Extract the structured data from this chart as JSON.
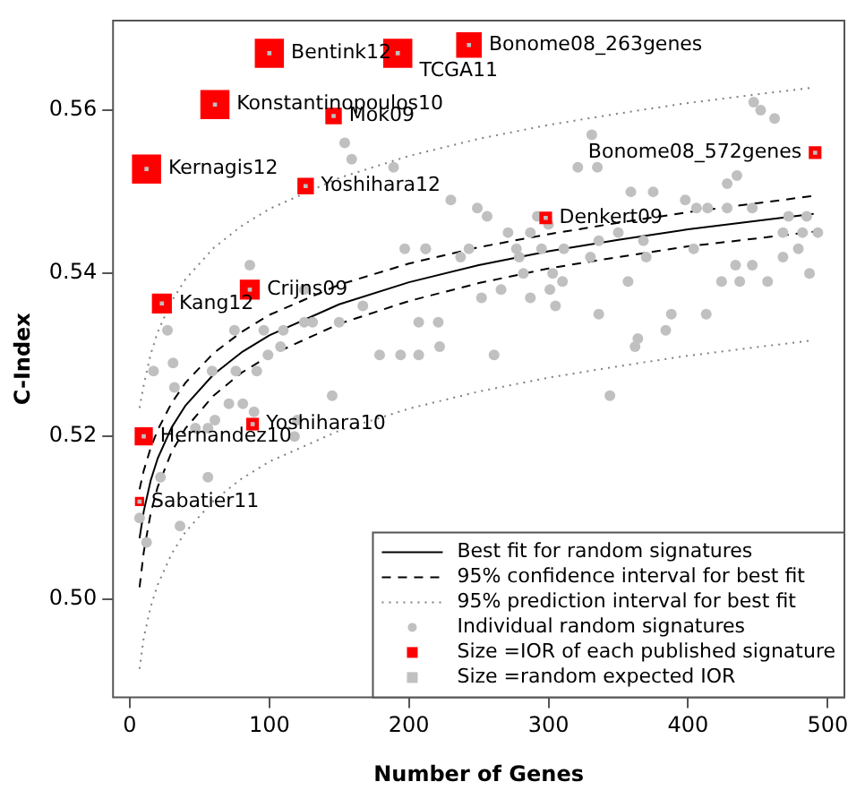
{
  "chart_data": {
    "type": "scatter",
    "xlabel": "Number of Genes",
    "ylabel": "C-Index",
    "xlim": [
      -12,
      512
    ],
    "ylim": [
      0.488,
      0.571
    ],
    "xticks": [
      0,
      100,
      200,
      300,
      400,
      500
    ],
    "yticks": [
      {
        "value": 0.5,
        "label": "0.50"
      },
      {
        "value": 0.52,
        "label": "0.52"
      },
      {
        "value": 0.54,
        "label": "0.54"
      },
      {
        "value": 0.56,
        "label": "0.56"
      }
    ],
    "grid": false,
    "legend": "bottom right",
    "series": [
      {
        "name": "Best fit for random signatures",
        "type": "line",
        "line_style": "solid",
        "marker": "none",
        "color": "#000000",
        "x": [
          7,
          10,
          15,
          20,
          30,
          40,
          60,
          80,
          100,
          150,
          200,
          250,
          300,
          350,
          400,
          490
        ],
        "values": [
          0.5075,
          0.5108,
          0.5146,
          0.5173,
          0.5211,
          0.5238,
          0.5276,
          0.5303,
          0.5324,
          0.5362,
          0.5389,
          0.541,
          0.5427,
          0.5441,
          0.5454,
          0.5473
        ]
      },
      {
        "name": "95% confidence interval for best fit",
        "type": "line",
        "line_style": "dashed",
        "marker": "none",
        "color": "#000000",
        "x": [
          7,
          10,
          15,
          20,
          30,
          40,
          60,
          80,
          100,
          150,
          200,
          250,
          300,
          350,
          400,
          490
        ],
        "values": [
          0.5135,
          0.5158,
          0.5186,
          0.5208,
          0.5241,
          0.5266,
          0.5302,
          0.5328,
          0.5349,
          0.5386,
          0.5412,
          0.5432,
          0.5448,
          0.5462,
          0.5475,
          0.5495
        ]
      },
      {
        "type": "line",
        "line_style": "dashed",
        "marker": "none",
        "color": "#000000",
        "x": [
          7,
          10,
          15,
          20,
          30,
          40,
          60,
          80,
          100,
          150,
          200,
          250,
          300,
          350,
          400,
          490
        ],
        "values": [
          0.5015,
          0.5058,
          0.5106,
          0.5138,
          0.5181,
          0.521,
          0.525,
          0.5278,
          0.5299,
          0.5338,
          0.5366,
          0.5388,
          0.5406,
          0.542,
          0.5433,
          0.5451
        ]
      },
      {
        "name": "95% prediction interval for best fit",
        "type": "line",
        "line_style": "dotted",
        "marker": "none",
        "color": "#808080",
        "x": [
          7,
          10,
          15,
          20,
          30,
          40,
          60,
          80,
          100,
          150,
          200,
          250,
          300,
          350,
          400,
          490
        ],
        "values": [
          0.5235,
          0.5263,
          0.5301,
          0.5328,
          0.5366,
          0.5393,
          0.5431,
          0.5458,
          0.5479,
          0.5517,
          0.5544,
          0.5565,
          0.5582,
          0.5596,
          0.5609,
          0.5628
        ]
      },
      {
        "type": "line",
        "line_style": "dotted",
        "marker": "none",
        "color": "#808080",
        "x": [
          7,
          10,
          15,
          20,
          30,
          40,
          60,
          80,
          100,
          150,
          200,
          250,
          300,
          350,
          400,
          490
        ],
        "values": [
          0.4915,
          0.4953,
          0.4991,
          0.5018,
          0.5056,
          0.5083,
          0.5121,
          0.5148,
          0.5169,
          0.5207,
          0.5234,
          0.5255,
          0.5272,
          0.5286,
          0.5299,
          0.5318
        ]
      },
      {
        "name": "Individual random signatures",
        "type": "scatter",
        "marker": "circle",
        "color": "#c0c0c0",
        "x": [
          154,
          159,
          189,
          86,
          197,
          212,
          125,
          125,
          96,
          131,
          110,
          150,
          167,
          27,
          75,
          207,
          179,
          194,
          108,
          99,
          31,
          207,
          32,
          17,
          76,
          59,
          91,
          71,
          61,
          81,
          145,
          56,
          47,
          120,
          447,
          452,
          462,
          331,
          321,
          335,
          414,
          375,
          359,
          435,
          428,
          428,
          446,
          398,
          406,
          230,
          249,
          256,
          292,
          300,
          485,
          472,
          493,
          271,
          287,
          336,
          368,
          277,
          350,
          404,
          468,
          482,
          212,
          243,
          279,
          311,
          370,
          434,
          446,
          468,
          479,
          487,
          295,
          282,
          310,
          330,
          303,
          237,
          357,
          424,
          437,
          457,
          266,
          252,
          287,
          301,
          305,
          336,
          388,
          413,
          362,
          384,
          364,
          221,
          222,
          261,
          344,
          89,
          56,
          22,
          7,
          12,
          36,
          118
        ],
        "values": [
          0.556,
          0.554,
          0.553,
          0.541,
          0.543,
          0.543,
          0.538,
          0.534,
          0.533,
          0.534,
          0.533,
          0.534,
          0.536,
          0.533,
          0.533,
          0.534,
          0.53,
          0.53,
          0.531,
          0.53,
          0.529,
          0.53,
          0.526,
          0.528,
          0.528,
          0.528,
          0.528,
          0.524,
          0.522,
          0.524,
          0.525,
          0.521,
          0.521,
          0.522,
          0.561,
          0.56,
          0.559,
          0.557,
          0.553,
          0.553,
          0.548,
          0.55,
          0.55,
          0.552,
          0.551,
          0.548,
          0.548,
          0.549,
          0.548,
          0.549,
          0.548,
          0.547,
          0.547,
          0.546,
          0.547,
          0.547,
          0.545,
          0.545,
          0.545,
          0.544,
          0.544,
          0.543,
          0.545,
          0.543,
          0.545,
          0.545,
          0.543,
          0.543,
          0.542,
          0.543,
          0.542,
          0.541,
          0.541,
          0.542,
          0.543,
          0.54,
          0.543,
          0.54,
          0.539,
          0.542,
          0.54,
          0.542,
          0.539,
          0.539,
          0.539,
          0.539,
          0.538,
          0.537,
          0.537,
          0.538,
          0.536,
          0.535,
          0.535,
          0.535,
          0.531,
          0.533,
          0.532,
          0.534,
          0.531,
          0.53,
          0.525,
          0.523,
          0.515,
          0.515,
          0.51,
          0.507,
          0.509,
          0.52
        ]
      },
      {
        "name": "Size =IOR of each published signature",
        "type": "bubble",
        "marker": "square",
        "color": "#ff0000",
        "x": [
          100,
          192,
          243,
          61,
          146,
          12,
          126,
          491,
          298,
          23,
          86,
          88,
          10,
          7
        ],
        "values": [
          0.567,
          0.567,
          0.568,
          0.5607,
          0.5593,
          0.5528,
          0.5507,
          0.5548,
          0.5468,
          0.5363,
          0.538,
          0.5215,
          0.52,
          0.512
        ],
        "sizes": [
          1,
          1,
          0.77,
          1,
          0.32,
          1,
          0.32,
          0.19,
          0.19,
          0.47,
          0.47,
          0.19,
          0.39,
          0.1
        ]
      },
      {
        "name": "Size =random expected IOR",
        "type": "bubble",
        "marker": "square",
        "color": "#c0c0c0",
        "x": [
          100,
          192,
          243,
          61,
          146,
          12,
          126,
          491,
          298,
          23,
          86,
          88,
          10,
          7
        ],
        "values": [
          0.567,
          0.567,
          0.568,
          0.5607,
          0.5593,
          0.5528,
          0.5507,
          0.5548,
          0.5468,
          0.5363,
          0.538,
          0.5215,
          0.52,
          0.512
        ],
        "sizes": [
          0.02,
          0.02,
          0.02,
          0.02,
          0.02,
          0.02,
          0.02,
          0.02,
          0.02,
          0.02,
          0.02,
          0.02,
          0.02,
          0.02
        ]
      }
    ],
    "annotations": [
      {
        "text": "Bentink12",
        "x": 100,
        "y": 0.567
      },
      {
        "text": "TCGA11",
        "x": 192,
        "y": 0.567
      },
      {
        "text": "Bonome08_263genes",
        "x": 243,
        "y": 0.568
      },
      {
        "text": "Konstantinopoulos10",
        "x": 61,
        "y": 0.5607
      },
      {
        "text": "Mok09",
        "x": 146,
        "y": 0.5593
      },
      {
        "text": "Kernagis12",
        "x": 12,
        "y": 0.5528
      },
      {
        "text": "Yoshihara12",
        "x": 126,
        "y": 0.5507
      },
      {
        "text": "Bonome08_572genes",
        "x": 491,
        "y": 0.5548
      },
      {
        "text": "Denkert09",
        "x": 298,
        "y": 0.5468
      },
      {
        "text": "Kang12",
        "x": 23,
        "y": 0.5363
      },
      {
        "text": "Crijns09",
        "x": 86,
        "y": 0.538
      },
      {
        "text": "Yoshihara10",
        "x": 88,
        "y": 0.5215
      },
      {
        "text": "Hernandez10",
        "x": 10,
        "y": 0.52
      },
      {
        "text": "Sabatier11",
        "x": 7,
        "y": 0.512
      }
    ]
  }
}
